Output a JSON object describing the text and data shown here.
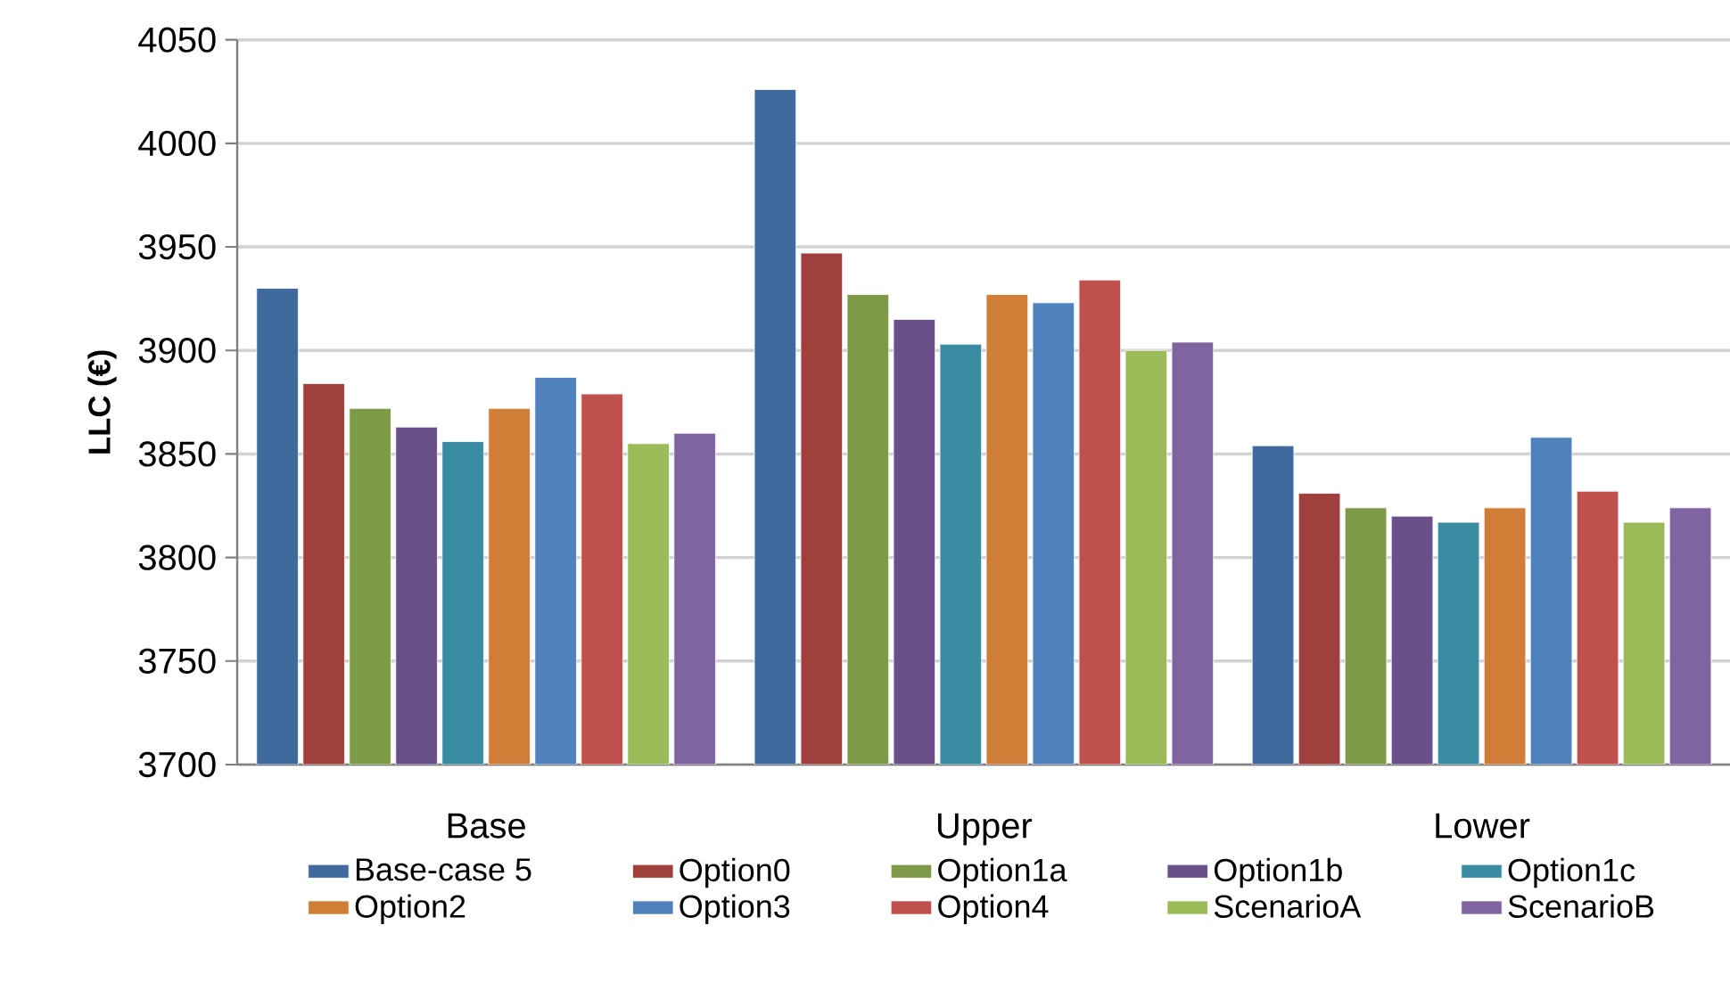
{
  "chart_data": {
    "type": "bar",
    "ylabel": "LLC (€)",
    "categories": [
      "Base",
      "Upper",
      "Lower"
    ],
    "series": [
      {
        "name": "Base-case 5",
        "color": "#3f6a9e",
        "values": [
          3930,
          4026,
          3854
        ]
      },
      {
        "name": "Option0",
        "color": "#a0403d",
        "values": [
          3884,
          3947,
          3831
        ]
      },
      {
        "name": "Option1a",
        "color": "#7e9a48",
        "values": [
          3872,
          3927,
          3824
        ]
      },
      {
        "name": "Option1b",
        "color": "#6a5088",
        "values": [
          3863,
          3915,
          3820
        ]
      },
      {
        "name": "Option1c",
        "color": "#3a8ca3",
        "values": [
          3856,
          3903,
          3817
        ]
      },
      {
        "name": "Option2",
        "color": "#d07e37",
        "values": [
          3872,
          3927,
          3824
        ]
      },
      {
        "name": "Option3",
        "color": "#4f81bd",
        "values": [
          3887,
          3923,
          3858
        ]
      },
      {
        "name": "Option4",
        "color": "#c0504d",
        "values": [
          3879,
          3934,
          3832
        ]
      },
      {
        "name": "ScenarioA",
        "color": "#9bbb59",
        "values": [
          3855,
          3900,
          3817
        ]
      },
      {
        "name": "ScenarioB",
        "color": "#8064a2",
        "values": [
          3860,
          3904,
          3824
        ]
      }
    ],
    "ylim": [
      3700,
      4050
    ],
    "yticks": [
      3700,
      3750,
      3800,
      3850,
      3900,
      3950,
      4000,
      4050
    ],
    "grid": "y",
    "legend": "bottom"
  }
}
